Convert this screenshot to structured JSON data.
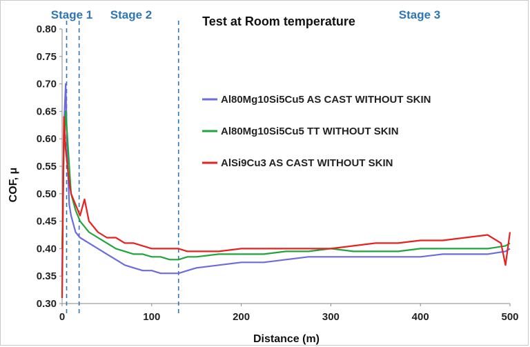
{
  "chart_data": {
    "type": "line",
    "title": "Test at Room temperature",
    "xlabel": "Distance (m)",
    "ylabel": "COF, μ",
    "xlim": [
      0,
      500
    ],
    "ylim": [
      0.3,
      0.8
    ],
    "x_ticks": [
      "0",
      "100",
      "200",
      "300",
      "400",
      "500"
    ],
    "y_ticks": [
      "0.30",
      "0.35",
      "0.40",
      "0.45",
      "0.50",
      "0.55",
      "0.60",
      "0.65",
      "0.70",
      "0.75",
      "0.80"
    ],
    "grid": false,
    "legend_position": "center-right",
    "stages": [
      {
        "label": "Stage 1",
        "boundary_x": 5
      },
      {
        "label": "Stage 2",
        "boundary_x": 19
      },
      {
        "label": "Stage 3",
        "boundary_x": 130
      }
    ],
    "stage_color": "#2e75b6",
    "series": [
      {
        "name": "Al80Mg10Si5Cu5 AS CAST WITHOUT SKIN",
        "color": "#6b6bde",
        "x": [
          0,
          2,
          4,
          6,
          8,
          10,
          15,
          20,
          30,
          40,
          50,
          60,
          70,
          80,
          90,
          100,
          110,
          120,
          130,
          140,
          150,
          175,
          200,
          225,
          250,
          275,
          300,
          325,
          350,
          375,
          400,
          425,
          450,
          475,
          495,
          500
        ],
        "y": [
          0.35,
          0.62,
          0.7,
          0.56,
          0.48,
          0.46,
          0.43,
          0.42,
          0.41,
          0.4,
          0.39,
          0.38,
          0.37,
          0.365,
          0.36,
          0.36,
          0.355,
          0.355,
          0.355,
          0.36,
          0.365,
          0.37,
          0.375,
          0.375,
          0.38,
          0.385,
          0.385,
          0.385,
          0.385,
          0.385,
          0.385,
          0.39,
          0.39,
          0.39,
          0.395,
          0.4
        ]
      },
      {
        "name": "Al80Mg10Si5Cu5 TT WITHOUT SKIN",
        "color": "#1fa53c",
        "x": [
          0,
          2,
          4,
          6,
          8,
          10,
          15,
          20,
          30,
          40,
          50,
          60,
          70,
          80,
          90,
          100,
          110,
          120,
          130,
          140,
          150,
          175,
          200,
          225,
          250,
          275,
          300,
          325,
          350,
          375,
          400,
          425,
          450,
          475,
          495,
          500
        ],
        "y": [
          0.4,
          0.58,
          0.65,
          0.6,
          0.55,
          0.5,
          0.47,
          0.45,
          0.43,
          0.42,
          0.41,
          0.4,
          0.395,
          0.39,
          0.39,
          0.385,
          0.385,
          0.38,
          0.38,
          0.385,
          0.385,
          0.39,
          0.39,
          0.39,
          0.395,
          0.395,
          0.4,
          0.395,
          0.395,
          0.395,
          0.4,
          0.4,
          0.4,
          0.4,
          0.405,
          0.41
        ]
      },
      {
        "name": "AlSi9Cu3 AS CAST WITHOUT SKIN",
        "color": "#e8201e",
        "x": [
          0,
          2,
          4,
          6,
          8,
          10,
          15,
          20,
          25,
          30,
          40,
          50,
          60,
          70,
          80,
          90,
          100,
          110,
          120,
          130,
          140,
          150,
          175,
          200,
          225,
          250,
          275,
          300,
          325,
          350,
          375,
          400,
          425,
          450,
          475,
          490,
          495,
          500
        ],
        "y": [
          0.31,
          0.64,
          0.58,
          0.55,
          0.52,
          0.5,
          0.48,
          0.46,
          0.49,
          0.45,
          0.43,
          0.42,
          0.42,
          0.41,
          0.41,
          0.405,
          0.4,
          0.4,
          0.4,
          0.4,
          0.395,
          0.395,
          0.395,
          0.4,
          0.4,
          0.4,
          0.4,
          0.4,
          0.405,
          0.41,
          0.41,
          0.415,
          0.415,
          0.42,
          0.425,
          0.41,
          0.37,
          0.43
        ]
      }
    ]
  }
}
